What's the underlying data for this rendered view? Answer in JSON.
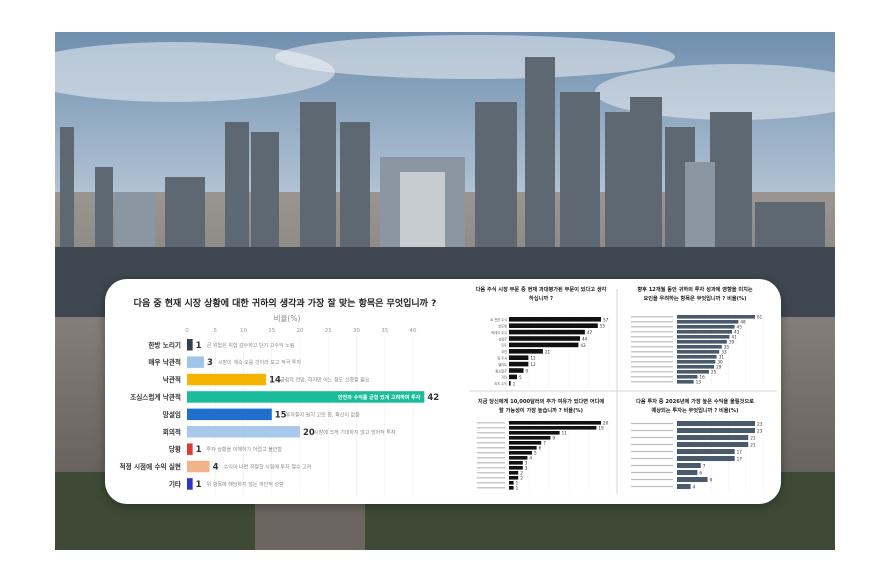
{
  "main_chart": {
    "title": "다음 중 현재 시장 상황에 대한 귀하의 생각과 가장 잘 맞는 항목은 무엇입니까 ?",
    "axis_title": "비율(%)",
    "ticks": [
      0,
      5,
      10,
      15,
      20,
      25,
      30,
      35,
      40
    ],
    "xlim": [
      0,
      43
    ]
  },
  "chart_data": [
    {
      "type": "bar",
      "orientation": "horizontal",
      "title": "다음 중 현재 시장 상황에 대한 귀하의 생각과 가장 잘 맞는 항목은 무엇입니까 ?",
      "xlabel": "비율(%)",
      "xlim": [
        0,
        43
      ],
      "grid": true,
      "categories": [
        "한방 노리기",
        "매우 낙관적",
        "낙관적",
        "조심스럽게 낙관적",
        "망설임",
        "회의적",
        "당황",
        "적정 시점에 수익 실현",
        "기타"
      ],
      "values": [
        1,
        3,
        14,
        42,
        15,
        20,
        1,
        4,
        1
      ],
      "annotations": [
        "큰 위험은 위험 감수하고 단기 고수익 노림",
        "시장이 계속 오를 것이라 보고 적극 투자",
        "긍정적 전망, 하지만 어느 정도 신중할 필요",
        "안전과 수익률 균형 있게 고려하며 투자",
        "투자할지 말지 고민 중, 확신이 없음",
        "시장에 크게 기대하지 않고 방어적 투자",
        "투자 상황을 이해하기 어렵고 불안함",
        "수익이 나면 적절한 시점에 투자 철수 고려",
        "위 항목에 해당하지 않는 개인적 성향"
      ],
      "colors": [
        "#33414f",
        "#9fc5e8",
        "#f4b400",
        "#1abc9c",
        "#1f6fcf",
        "#a8c8ec",
        "#e53935",
        "#f2b38a",
        "#2d34c8"
      ]
    },
    {
      "type": "bar",
      "orientation": "horizontal",
      "title_lines": [
        "다음 주식 시장 부문 중 현재 과대평가된 부문이 있다고 생각",
        "하십니까 ?"
      ],
      "xlabel": "비율(%)",
      "categories": [
        "AI 관련 주식",
        "반도체",
        "빅테크 주식",
        "성장주",
        "모두",
        "코인",
        "밈 주식",
        "엘리트",
        "중소형주",
        "기타",
        "리츠 수익"
      ],
      "values": [
        57,
        55,
        47,
        44,
        43,
        21,
        12,
        12,
        9,
        5,
        1
      ],
      "color": "#111111"
    },
    {
      "type": "bar",
      "orientation": "horizontal",
      "title_lines": [
        "향후 12개월 동안 귀하의 투자 성과에 영향을 미치는",
        "요인을 우려하는 항목은 무엇입니까 ? 비율(%)"
      ],
      "categories": [
        "",
        "",
        "",
        "",
        "",
        "",
        "",
        "",
        "",
        "",
        "",
        "",
        "",
        ""
      ],
      "values": [
        61,
        48,
        45,
        43,
        41,
        39,
        35,
        33,
        31,
        30,
        29,
        25,
        16,
        13
      ],
      "color": "#4a5a6d"
    },
    {
      "type": "bar",
      "orientation": "horizontal",
      "title_lines": [
        "지금 당신에게 10,000달러의 추가 여유가 있다면 어디에",
        "할 가능성이 가장 높습니까 ? 비율(%)"
      ],
      "categories": [
        "",
        "",
        "",
        "",
        "",
        "",
        "",
        "",
        "",
        "",
        "",
        "",
        "",
        ""
      ],
      "values": [
        20,
        19,
        11,
        9,
        7,
        6,
        5,
        4,
        3,
        3,
        2,
        2,
        1,
        1
      ],
      "color": "#111111"
    },
    {
      "type": "bar",
      "orientation": "horizontal",
      "title_lines": [
        "다음 투자 중 2026년에 가장 높은 수익을 올릴것으로",
        "예상되는 투자는 무엇입니까 ? 비율(%)"
      ],
      "categories": [
        "",
        "",
        "",
        "",
        "",
        "",
        "",
        "",
        "",
        ""
      ],
      "values": [
        23,
        23,
        21,
        21,
        17,
        17,
        7,
        6,
        9,
        4
      ],
      "color": "#4a5a6d"
    }
  ]
}
